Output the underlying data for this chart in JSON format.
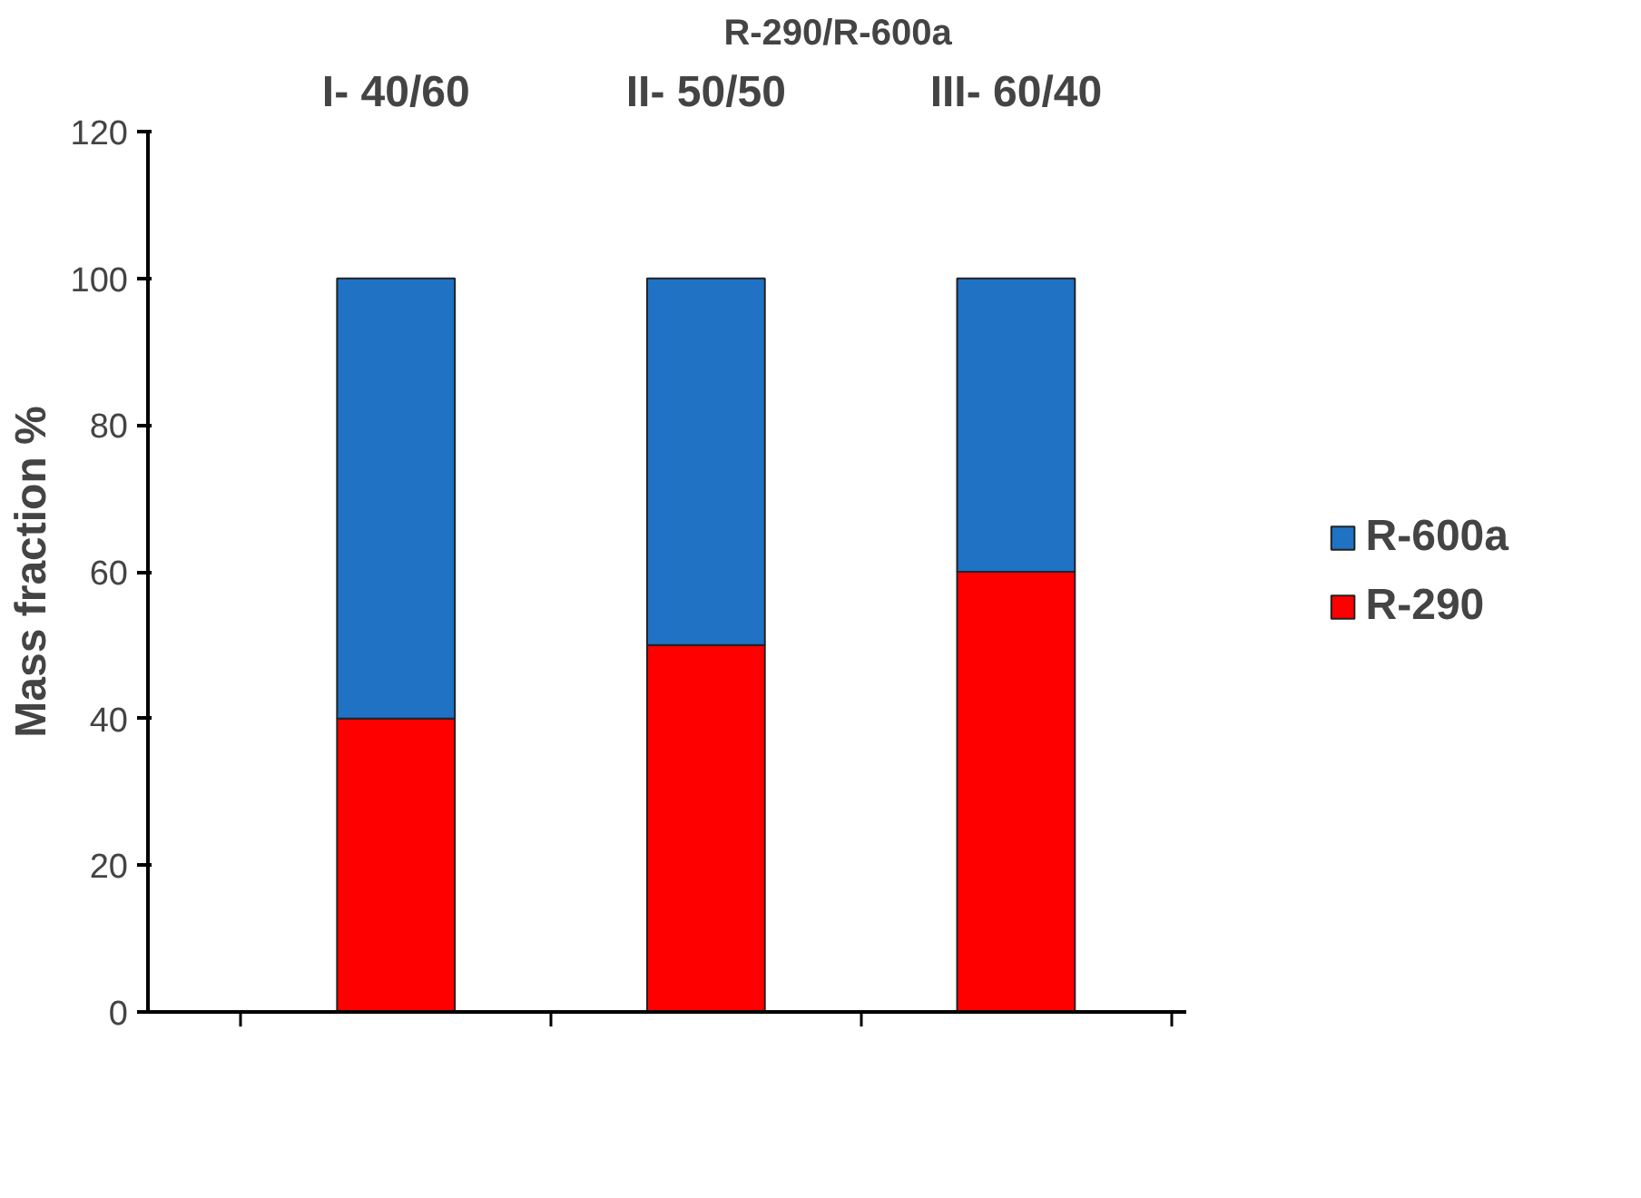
{
  "chart_data": {
    "type": "bar",
    "title": "R-290/R-600a",
    "ylabel": "Mass fraction %",
    "categories": [
      "I- 40/60",
      "II- 50/50",
      "III- 60/40"
    ],
    "stacked": true,
    "series": [
      {
        "name": "R-290",
        "color": "#ff0000",
        "values": [
          40,
          50,
          60
        ]
      },
      {
        "name": "R-600a",
        "color": "#1f72c4",
        "values": [
          60,
          50,
          40
        ]
      }
    ],
    "ylim": [
      0,
      120
    ],
    "yticks": [
      0,
      20,
      40,
      60,
      80,
      100,
      120
    ],
    "grid": false,
    "legend": "right"
  }
}
